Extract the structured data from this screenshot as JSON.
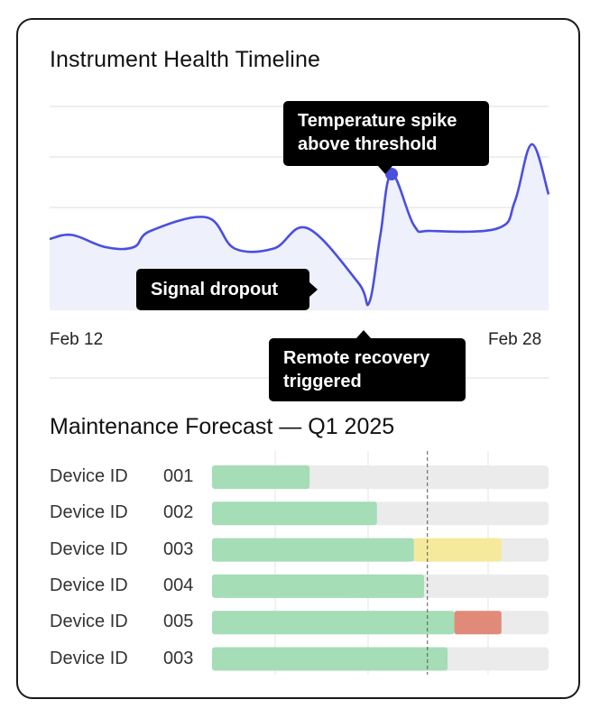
{
  "chart_data": [
    {
      "type": "area",
      "title": "Instrument Health Timeline",
      "x_labels": [
        "Feb 12",
        "Feb 28"
      ],
      "series": [
        {
          "values": [
            [
              0,
              0.52
            ],
            [
              4,
              0.55
            ],
            [
              10,
              0.46
            ],
            [
              15,
              0.46
            ],
            [
              18,
              0.58
            ],
            [
              28,
              0.68
            ],
            [
              33,
              0.45
            ],
            [
              40,
              0.45
            ],
            [
              46,
              0.6
            ],
            [
              55,
              0.2
            ],
            [
              57,
              0.05
            ],
            [
              59,
              0.55
            ],
            [
              61,
              1.0
            ],
            [
              65,
              0.62
            ],
            [
              68,
              0.58
            ],
            [
              80,
              0.6
            ],
            [
              83,
              0.8
            ],
            [
              86,
              1.22
            ],
            [
              89,
              0.85
            ]
          ],
          "color": "#4a4fe0"
        }
      ],
      "annotations": [
        {
          "text": [
            "Temperature spike",
            "above threshold"
          ],
          "at_x": 61,
          "marker": true
        },
        {
          "text": [
            "Signal dropout"
          ],
          "at_x": 53
        },
        {
          "text": [
            "Remote recovery",
            "triggered"
          ],
          "at_x": 57
        }
      ],
      "grid": true
    },
    {
      "type": "bar",
      "subtype": "stacked-horizontal-progress",
      "title": "Maintenance Forecast — Q1 2025",
      "categories": [
        {
          "label": "Device ID",
          "id": "001"
        },
        {
          "label": "Device ID",
          "id": "002"
        },
        {
          "label": "Device ID",
          "id": "003"
        },
        {
          "label": "Device ID",
          "id": "004"
        },
        {
          "label": "Device ID",
          "id": "005"
        },
        {
          "label": "Device ID",
          "id": "003"
        }
      ],
      "series": [
        {
          "status": "ok",
          "color": "#a4ddb6",
          "values": [
            0.29,
            0.49,
            0.6,
            0.63,
            0.72,
            0.7
          ]
        },
        {
          "status": "warning",
          "color": "#f5ea9c",
          "values": [
            0,
            0,
            0.26,
            0,
            0,
            0
          ]
        },
        {
          "status": "critical",
          "color": "#e28a79",
          "values": [
            0,
            0,
            0,
            0,
            0.14,
            0
          ]
        }
      ],
      "track_color": "#ebebeb",
      "marker_line": 0.64,
      "xlim": [
        0,
        1
      ]
    }
  ]
}
